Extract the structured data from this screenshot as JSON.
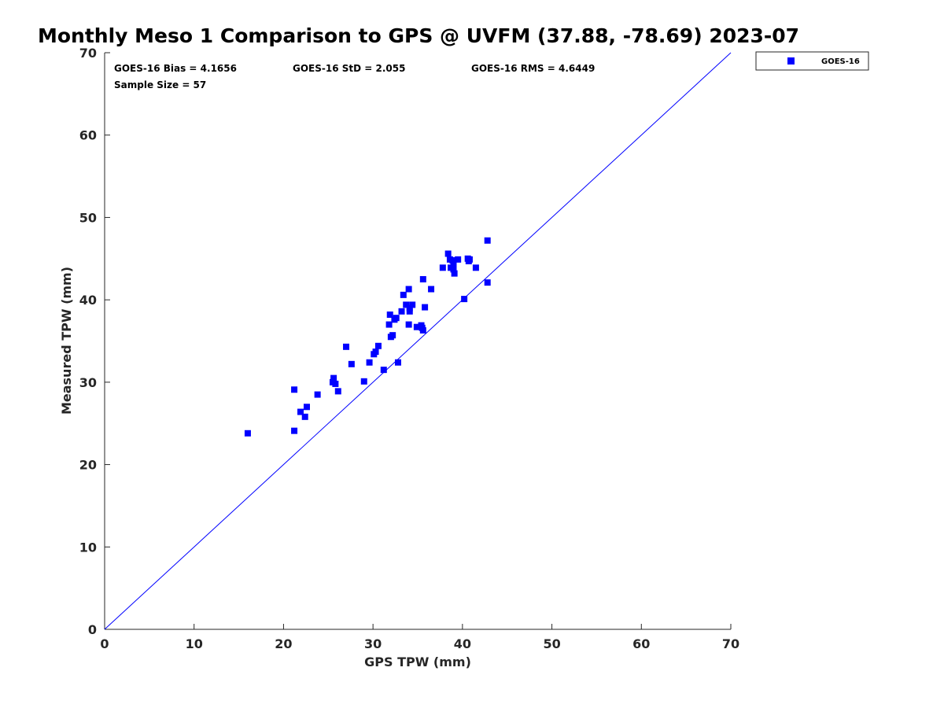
{
  "chart_data": {
    "type": "scatter",
    "title": "Monthly Meso 1 Comparison to GPS @ UVFM (37.88, -78.69) 2023-07",
    "xlabel": "GPS TPW (mm)",
    "ylabel": "Measured TPW (mm)",
    "xlim": [
      0,
      70
    ],
    "ylim": [
      0,
      70
    ],
    "xticks": [
      0,
      10,
      20,
      30,
      40,
      50,
      60,
      70
    ],
    "yticks": [
      0,
      10,
      20,
      30,
      40,
      50,
      60,
      70
    ],
    "grid": false,
    "legend_position": "top-right-outside",
    "reference_line": {
      "name": "1:1 line",
      "x": [
        0,
        70
      ],
      "y": [
        0,
        70
      ],
      "color": "#0000ff"
    },
    "stats": {
      "bias": "GOES-16 Bias = 4.1656",
      "std": "GOES-16 StD = 2.055",
      "rms": "GOES-16 RMS = 4.6449",
      "sample_size": "Sample Size = 57"
    },
    "series": [
      {
        "name": "GOES-16",
        "color": "#0000ff",
        "marker": "square",
        "points": [
          [
            16.0,
            23.8
          ],
          [
            21.2,
            29.1
          ],
          [
            21.2,
            24.1
          ],
          [
            21.9,
            26.4
          ],
          [
            22.4,
            25.8
          ],
          [
            22.6,
            27.0
          ],
          [
            23.8,
            28.5
          ],
          [
            25.5,
            30.0
          ],
          [
            25.6,
            30.5
          ],
          [
            25.8,
            29.8
          ],
          [
            26.1,
            28.9
          ],
          [
            27.0,
            34.3
          ],
          [
            27.6,
            32.2
          ],
          [
            29.0,
            30.1
          ],
          [
            29.6,
            32.4
          ],
          [
            30.1,
            33.4
          ],
          [
            30.3,
            33.7
          ],
          [
            30.6,
            34.4
          ],
          [
            31.2,
            31.5
          ],
          [
            31.8,
            37.0
          ],
          [
            31.9,
            38.2
          ],
          [
            32.0,
            35.5
          ],
          [
            32.2,
            35.7
          ],
          [
            32.4,
            37.6
          ],
          [
            32.6,
            37.8
          ],
          [
            32.8,
            32.4
          ],
          [
            33.2,
            38.6
          ],
          [
            33.4,
            40.6
          ],
          [
            33.7,
            39.4
          ],
          [
            34.0,
            37.0
          ],
          [
            34.0,
            41.3
          ],
          [
            34.1,
            39.0
          ],
          [
            34.1,
            38.6
          ],
          [
            34.4,
            39.4
          ],
          [
            34.9,
            36.7
          ],
          [
            35.4,
            36.9
          ],
          [
            35.5,
            36.6
          ],
          [
            35.6,
            36.3
          ],
          [
            35.6,
            42.5
          ],
          [
            35.8,
            39.1
          ],
          [
            36.5,
            41.3
          ],
          [
            37.8,
            43.9
          ],
          [
            38.4,
            45.6
          ],
          [
            38.6,
            44.9
          ],
          [
            38.7,
            43.9
          ],
          [
            38.9,
            44.8
          ],
          [
            39.0,
            44.4
          ],
          [
            39.0,
            43.7
          ],
          [
            39.1,
            43.2
          ],
          [
            39.5,
            44.9
          ],
          [
            40.2,
            40.1
          ],
          [
            40.6,
            45.0
          ],
          [
            40.7,
            44.7
          ],
          [
            40.8,
            44.9
          ],
          [
            41.5,
            43.9
          ],
          [
            42.8,
            47.2
          ],
          [
            42.8,
            42.1
          ]
        ]
      }
    ]
  }
}
